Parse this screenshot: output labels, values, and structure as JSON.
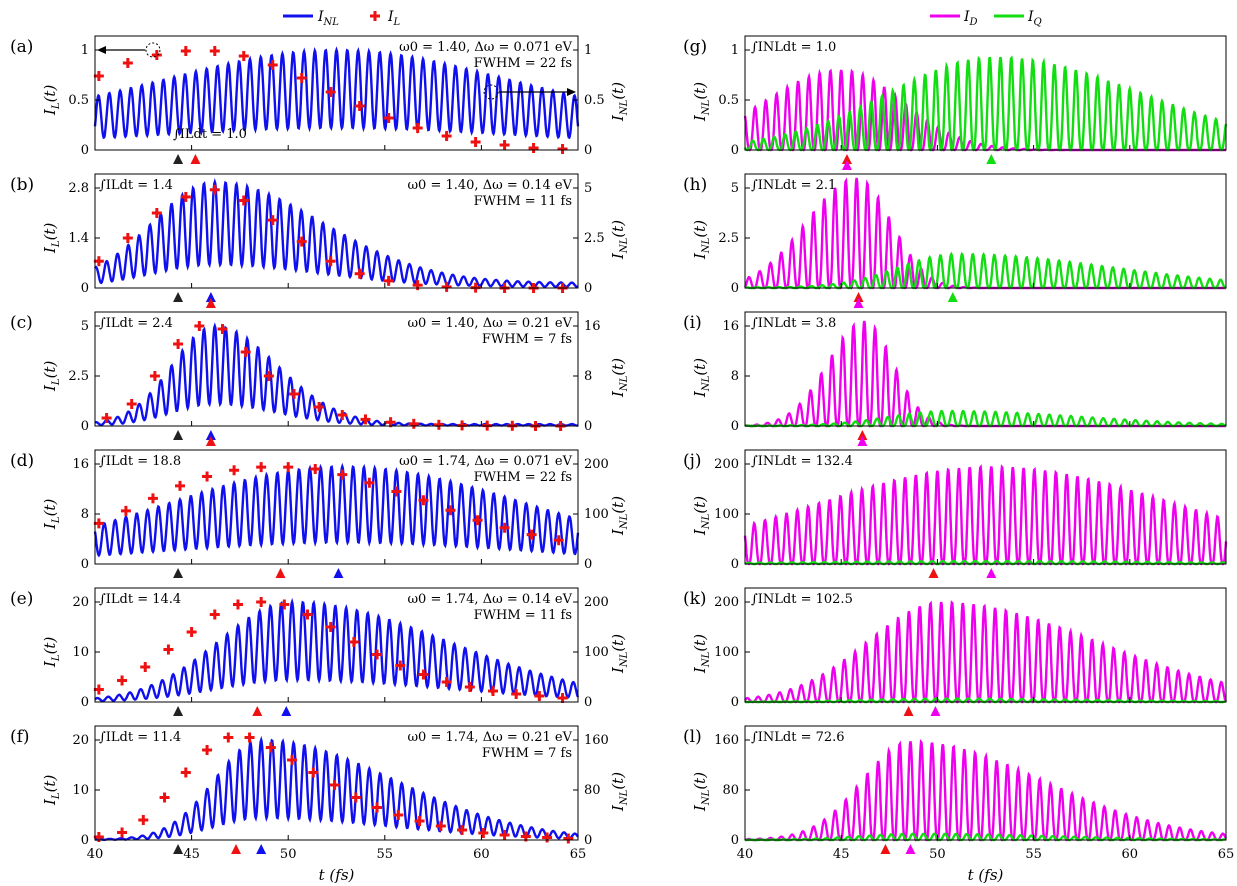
{
  "chart_data": {
    "type": "line",
    "xlabel": "t (fs)",
    "xlim": [
      40,
      65
    ],
    "xticks": [
      40,
      45,
      50,
      55,
      60,
      65
    ],
    "grid": false,
    "legend_left": {
      "placement": "top",
      "series": [
        {
          "name": "I_NL",
          "label": "INL",
          "color": "#1010ee"
        },
        {
          "name": "I_L",
          "label": "IL",
          "color": "#ee1111"
        }
      ]
    },
    "legend_right": {
      "placement": "top",
      "series": [
        {
          "name": "I_D",
          "label": "ID",
          "color": "#ee00ee"
        },
        {
          "name": "I_Q",
          "label": "IQ",
          "color": "#11dd11"
        }
      ]
    },
    "panels_left": [
      {
        "label": "(a)",
        "ylabel_left": "IL(t)",
        "ylabel_right": "INL(t)",
        "yticks_left": [
          "0",
          "0.5",
          "1"
        ],
        "yticks_right": [
          "0",
          "0.5",
          "1"
        ],
        "ylim_left": [
          0,
          1.05
        ],
        "ylim_right": [
          0,
          1.05
        ],
        "integral": "∫ILdt = 1.0",
        "params": "ω0 = 1.40, Δω = 0.071 eV",
        "fwhm": "FWHM = 22 fs",
        "NL_envelope": {
          "peak_t": 52.5,
          "peak": 1.0,
          "rise": 8.5,
          "fall": 8.5,
          "floor": 0.3
        },
        "IL_points": {
          "t": [
            40.2,
            41.7,
            43.2,
            44.7,
            46.2,
            47.7,
            49.2,
            50.7,
            52.2,
            53.7,
            55.2,
            56.7,
            58.2,
            59.7,
            61.2,
            62.7,
            64.2
          ],
          "v": [
            0.74,
            0.87,
            0.95,
            0.99,
            0.99,
            0.94,
            0.85,
            0.72,
            0.58,
            0.44,
            0.32,
            0.22,
            0.14,
            0.08,
            0.05,
            0.02,
            0.01
          ]
        },
        "markers": [
          {
            "t": 44.3,
            "c": "#222222"
          },
          {
            "t": 45.2,
            "c": "#ee1111"
          }
        ]
      },
      {
        "label": "(b)",
        "ylabel_left": "IL(t)",
        "ylabel_right": "INL(t)",
        "yticks_left": [
          "0",
          "1.4",
          "2.8"
        ],
        "yticks_right": [
          "0",
          "2.5",
          "5"
        ],
        "ylim_left": [
          0,
          3.0
        ],
        "ylim_right": [
          0,
          5.6
        ],
        "integral": "∫ILdt = 1.4",
        "params": "ω0 = 1.40, Δω = 0.14 eV",
        "fwhm": "FWHM = 11 fs",
        "NL_envelope": {
          "peak_t": 46.2,
          "peak": 5.3,
          "rise": 3.2,
          "fall": 5.5,
          "floor": 0.25
        },
        "IL_points": {
          "t": [
            40.2,
            41.7,
            43.2,
            44.7,
            46.2,
            47.7,
            49.2,
            50.7,
            52.2,
            53.7,
            55.2,
            56.7,
            58.2,
            59.7,
            61.2,
            62.7,
            64.2
          ],
          "v": [
            0.75,
            1.4,
            2.1,
            2.55,
            2.75,
            2.45,
            1.9,
            1.3,
            0.75,
            0.4,
            0.2,
            0.08,
            0.03,
            0.01,
            0.0,
            0.0,
            0.0
          ]
        },
        "markers": [
          {
            "t": 44.3,
            "c": "#222222"
          },
          {
            "t": 46.0,
            "c": "#1010ee"
          },
          {
            "t": 46.0,
            "c": "#ee1111",
            "stack": true
          }
        ]
      },
      {
        "label": "(c)",
        "ylabel_left": "IL(t)",
        "ylabel_right": "INL(t)",
        "yticks_left": [
          "0",
          "2.5",
          "5"
        ],
        "yticks_right": [
          "0",
          "8",
          "16"
        ],
        "ylim_left": [
          0,
          5.4
        ],
        "ylim_right": [
          0,
          17.5
        ],
        "integral": "∫ILdt = 2.4",
        "params": "ω0 = 1.40, Δω = 0.21 eV",
        "fwhm": "FWHM = 7 fs",
        "NL_envelope": {
          "peak_t": 46.2,
          "peak": 16.0,
          "rise": 2.2,
          "fall": 3.2,
          "floor": 0.3
        },
        "IL_points": {
          "t": [
            40.6,
            41.9,
            43.1,
            44.3,
            45.4,
            46.6,
            47.8,
            49.0,
            50.3,
            51.6,
            52.8,
            54.0,
            55.3,
            56.5,
            57.8,
            59.0,
            60.3,
            61.6,
            62.8,
            64.1
          ],
          "v": [
            0.4,
            1.1,
            2.5,
            4.1,
            5.0,
            4.85,
            3.7,
            2.5,
            1.6,
            0.95,
            0.55,
            0.33,
            0.19,
            0.11,
            0.06,
            0.03,
            0.02,
            0.01,
            0.0,
            0.0
          ]
        },
        "markers": [
          {
            "t": 44.3,
            "c": "#222222"
          },
          {
            "t": 46.0,
            "c": "#1010ee"
          },
          {
            "t": 46.0,
            "c": "#ee1111",
            "stack": true
          }
        ]
      },
      {
        "label": "(d)",
        "ylabel_left": "IL(t)",
        "ylabel_right": "INL(t)",
        "yticks_left": [
          "0",
          "8",
          "16"
        ],
        "yticks_right": [
          "0",
          "100",
          "200"
        ],
        "ylim_left": [
          0,
          17
        ],
        "ylim_right": [
          0,
          212
        ],
        "integral": "∫ILdt = 18.8",
        "params": "ω0 = 1.74, Δω = 0.071 eV",
        "fwhm": "FWHM = 22 fs",
        "NL_envelope": {
          "peak_t": 52.8,
          "peak": 195,
          "rise": 9.0,
          "fall": 9.5,
          "floor": 8
        },
        "IL_points": {
          "t": [
            40.2,
            41.6,
            43.0,
            44.4,
            45.8,
            47.2,
            48.6,
            50.0,
            51.4,
            52.8,
            54.2,
            55.6,
            57.0,
            58.4,
            59.8,
            61.2,
            62.6,
            64.0
          ],
          "v": [
            6.5,
            8.5,
            10.5,
            12.5,
            14.0,
            15.0,
            15.5,
            15.5,
            15.2,
            14.3,
            13.0,
            11.6,
            10.2,
            8.6,
            7.0,
            5.8,
            4.7,
            3.8
          ]
        },
        "markers": [
          {
            "t": 44.3,
            "c": "#222222"
          },
          {
            "t": 49.6,
            "c": "#ee1111"
          },
          {
            "t": 52.6,
            "c": "#1010ee"
          }
        ]
      },
      {
        "label": "(e)",
        "ylabel_left": "IL(t)",
        "ylabel_right": "INL(t)",
        "yticks_left": [
          "0",
          "10",
          "20"
        ],
        "yticks_right": [
          "0",
          "100",
          "200"
        ],
        "ylim_left": [
          0,
          22
        ],
        "ylim_right": [
          0,
          220
        ],
        "integral": "∫ILdt = 14.4",
        "params": "ω0 = 1.74, Δω = 0.14 eV",
        "fwhm": "FWHM = 11 fs",
        "NL_envelope": {
          "peak_t": 50.2,
          "peak": 200,
          "rise": 3.8,
          "fall": 8.0,
          "floor": 2
        },
        "IL_points": {
          "t": [
            40.2,
            41.4,
            42.6,
            43.8,
            45.0,
            46.2,
            47.4,
            48.6,
            49.8,
            51.0,
            52.2,
            53.4,
            54.6,
            55.8,
            57.0,
            58.2,
            59.4,
            60.6,
            61.8,
            63.0,
            64.2
          ],
          "v": [
            2.5,
            4.3,
            7.0,
            10.5,
            14.0,
            17.5,
            19.5,
            20.0,
            19.5,
            17.5,
            15.0,
            12.0,
            9.5,
            7.3,
            5.5,
            4.0,
            3.0,
            2.2,
            1.6,
            1.2,
            0.8
          ]
        },
        "markers": [
          {
            "t": 44.3,
            "c": "#222222"
          },
          {
            "t": 48.4,
            "c": "#ee1111"
          },
          {
            "t": 49.9,
            "c": "#1010ee"
          }
        ]
      },
      {
        "label": "(f)",
        "ylabel_left": "IL(t)",
        "ylabel_right": "INL(t)",
        "yticks_left": [
          "0",
          "10",
          "20"
        ],
        "yticks_right": [
          "0",
          "80",
          "160"
        ],
        "ylim_left": [
          0,
          22
        ],
        "ylim_right": [
          0,
          172
        ],
        "integral": "∫ILdt = 11.4",
        "params": "ω0 = 1.74, Δω = 0.21 eV",
        "fwhm": "FWHM = 7 fs",
        "NL_envelope": {
          "peak_t": 48.6,
          "peak": 160,
          "rise": 2.4,
          "fall": 6.8,
          "floor": 1
        },
        "IL_points": {
          "t": [
            40.2,
            41.4,
            42.5,
            43.6,
            44.7,
            45.8,
            46.9,
            48.0,
            49.1,
            50.2,
            51.3,
            52.4,
            53.5,
            54.6,
            55.7,
            56.8,
            57.9,
            59.0,
            60.1,
            61.2,
            62.3,
            63.4,
            64.5
          ],
          "v": [
            0.6,
            1.5,
            4.0,
            8.5,
            13.5,
            18.0,
            20.5,
            20.5,
            18.5,
            16.0,
            13.5,
            11.0,
            8.5,
            6.5,
            5.0,
            3.8,
            2.8,
            2.0,
            1.4,
            1.0,
            0.7,
            0.5,
            0.3
          ]
        },
        "markers": [
          {
            "t": 44.3,
            "c": "#222222"
          },
          {
            "t": 47.3,
            "c": "#ee1111"
          },
          {
            "t": 48.6,
            "c": "#1010ee"
          }
        ]
      }
    ],
    "panels_right": [
      {
        "label": "(g)",
        "ylabel": "INL(t)",
        "yticks": [
          "0",
          "0.5",
          "1"
        ],
        "ylim": [
          0,
          1.05
        ],
        "integral": "∫INLdt = 1.0",
        "D_envelope": {
          "peak_t": 45.0,
          "peak": 0.8,
          "rise": 4.0,
          "fall": 3.2,
          "floor": 0.0
        },
        "Q_envelope": {
          "peak_t": 53.0,
          "peak": 0.93,
          "rise": 5.5,
          "fall": 7.5,
          "floor": 0.03
        },
        "markers": [
          {
            "t": 45.3,
            "c": "#ee1111"
          },
          {
            "t": 45.3,
            "c": "#ee00ee",
            "stack": true
          },
          {
            "t": 52.8,
            "c": "#11dd11"
          }
        ]
      },
      {
        "label": "(h)",
        "ylabel": "INL(t)",
        "yticks": [
          "0",
          "2.5",
          "5"
        ],
        "ylim": [
          0,
          5.8
        ],
        "integral": "∫INLdt = 2.1",
        "D_envelope": {
          "peak_t": 45.8,
          "peak": 5.5,
          "rise": 2.6,
          "fall": 1.8,
          "floor": 0.0
        },
        "Q_envelope": {
          "peak_t": 51.0,
          "peak": 1.7,
          "rise": 3.0,
          "fall": 8.0,
          "floor": 0.03
        },
        "markers": [
          {
            "t": 45.9,
            "c": "#ee1111"
          },
          {
            "t": 45.9,
            "c": "#ee00ee",
            "stack": true
          },
          {
            "t": 50.8,
            "c": "#11dd11"
          }
        ]
      },
      {
        "label": "(i)",
        "ylabel": "INL(t)",
        "yticks": [
          "0",
          "8",
          "16"
        ],
        "ylim": [
          0,
          18.5
        ],
        "integral": "∫INLdt = 3.8",
        "D_envelope": {
          "peak_t": 46.2,
          "peak": 16.8,
          "rise": 1.9,
          "fall": 1.5,
          "floor": 0.0
        },
        "Q_envelope": {
          "peak_t": 50.5,
          "peak": 2.4,
          "rise": 3.0,
          "fall": 7.0,
          "floor": 0.05
        },
        "markers": [
          {
            "t": 46.1,
            "c": "#ee1111"
          },
          {
            "t": 46.1,
            "c": "#ee00ee",
            "stack": true
          }
        ]
      },
      {
        "label": "(j)",
        "ylabel": "INL(t)",
        "yticks": [
          "0",
          "100",
          "200"
        ],
        "ylim": [
          0,
          215
        ],
        "integral": "∫INLdt = 132.4",
        "D_envelope": {
          "peak_t": 52.8,
          "peak": 195,
          "rise": 9.0,
          "fall": 9.5,
          "floor": 8
        },
        "Q_envelope": {
          "peak_t": 52.8,
          "peak": 6,
          "rise": 9.0,
          "fall": 9.5,
          "floor": 0.5
        },
        "markers": [
          {
            "t": 49.8,
            "c": "#ee1111"
          },
          {
            "t": 52.8,
            "c": "#ee00ee"
          }
        ]
      },
      {
        "label": "(k)",
        "ylabel": "INL(t)",
        "yticks": [
          "0",
          "100",
          "200"
        ],
        "ylim": [
          0,
          220
        ],
        "integral": "∫INLdt = 102.5",
        "D_envelope": {
          "peak_t": 50.2,
          "peak": 200,
          "rise": 3.8,
          "fall": 8.0,
          "floor": 2
        },
        "Q_envelope": {
          "peak_t": 50.2,
          "peak": 7,
          "rise": 4.0,
          "fall": 8.0,
          "floor": 0.3
        },
        "markers": [
          {
            "t": 48.5,
            "c": "#ee1111"
          },
          {
            "t": 49.9,
            "c": "#ee00ee"
          }
        ]
      },
      {
        "label": "(l)",
        "ylabel": "INL(t)",
        "yticks": [
          "0",
          "80",
          "160"
        ],
        "ylim": [
          0,
          172
        ],
        "integral": "∫INLdt = 72.6",
        "D_envelope": {
          "peak_t": 48.6,
          "peak": 158,
          "rise": 2.5,
          "fall": 6.8,
          "floor": 1
        },
        "Q_envelope": {
          "peak_t": 49.0,
          "peak": 10,
          "rise": 3.0,
          "fall": 7.0,
          "floor": 0.3
        },
        "markers": [
          {
            "t": 47.3,
            "c": "#ee1111"
          },
          {
            "t": 48.6,
            "c": "#ee00ee"
          }
        ]
      }
    ]
  }
}
